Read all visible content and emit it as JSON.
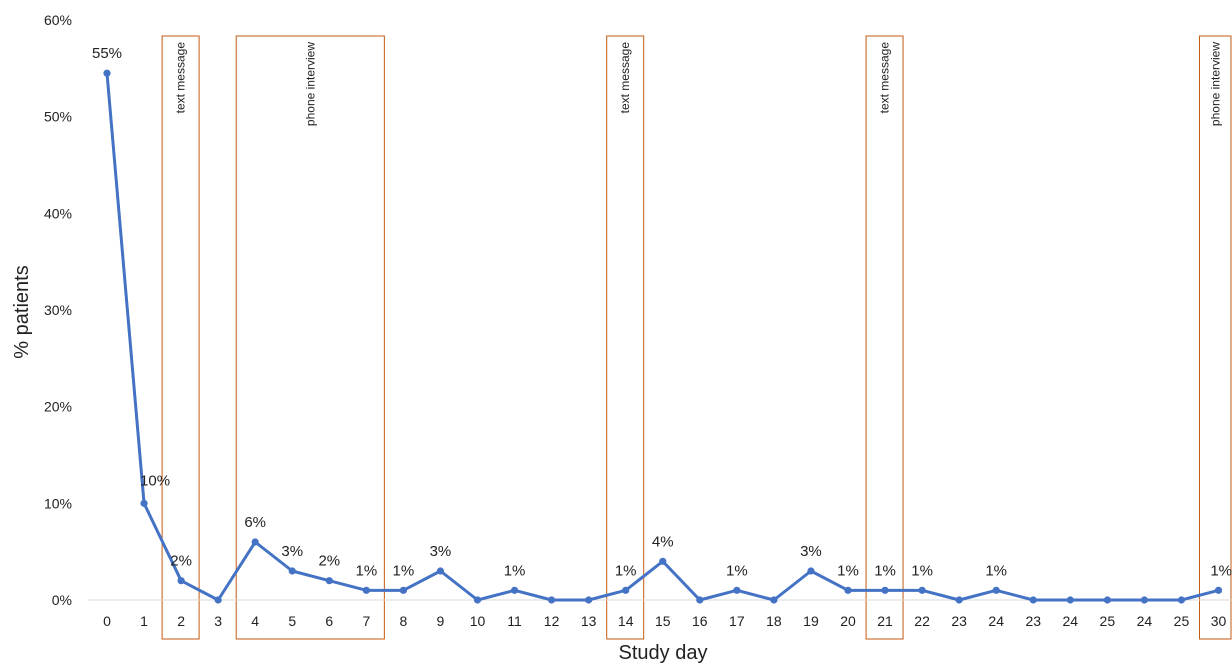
{
  "chart_data": {
    "type": "line",
    "xlabel": "Study day",
    "ylabel": "% patients",
    "ylim": [
      0,
      60
    ],
    "yticks": [
      "0%",
      "10%",
      "20%",
      "30%",
      "40%",
      "50%",
      "60%"
    ],
    "gridlines": false,
    "legend": "none",
    "categories": [
      "0",
      "1",
      "2",
      "3",
      "4",
      "5",
      "6",
      "7",
      "8",
      "9",
      "10",
      "11",
      "12",
      "13",
      "14",
      "15",
      "16",
      "17",
      "18",
      "19",
      "20",
      "21",
      "22",
      "23",
      "24",
      "23",
      "24",
      "25",
      "24",
      "25",
      "30"
    ],
    "series": [
      {
        "values": [
          54.5,
          10,
          2,
          0,
          6,
          3,
          2,
          1,
          1,
          3,
          0,
          1,
          0,
          0,
          1,
          4,
          0,
          1,
          0,
          3,
          1,
          1,
          1,
          0,
          1,
          0,
          0,
          0,
          0,
          0,
          1
        ],
        "data_labels": [
          "55%",
          "10%",
          "2%",
          "",
          "6%",
          "3%",
          "2%",
          "1%",
          "1%",
          "3%",
          "",
          "1%",
          "",
          "",
          "1%",
          "4%",
          "",
          "1%",
          "",
          "3%",
          "1%",
          "1%",
          "1%",
          "",
          "1%",
          "",
          "",
          "",
          "",
          "",
          "1%"
        ],
        "color": "#4472C4"
      }
    ],
    "annotations": [
      {
        "label": "text message",
        "from_index": 2,
        "to_index": 2
      },
      {
        "label": "phone interview",
        "from_index": 4,
        "to_index": 7
      },
      {
        "label": "text message",
        "from_index": 14,
        "to_index": 14
      },
      {
        "label": "text message",
        "from_index": 21,
        "to_index": 21
      },
      {
        "label": "phone interview",
        "from_index": 30,
        "to_index": 30
      }
    ],
    "annotation_color": "#C55A11"
  }
}
